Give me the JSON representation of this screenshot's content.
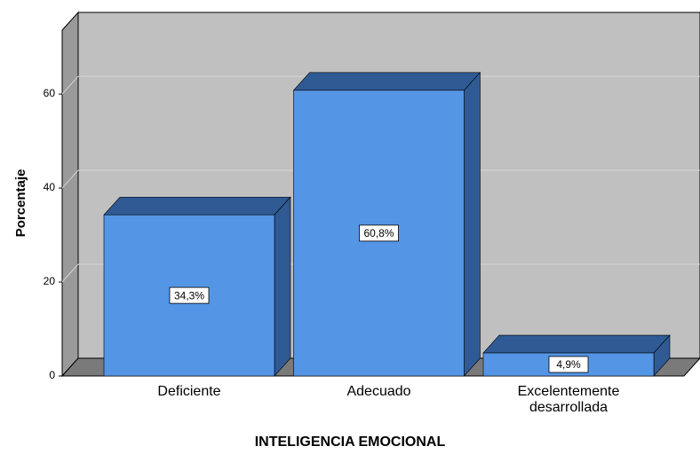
{
  "chart_data": {
    "type": "bar3d",
    "x_label": "INTELIGENCIA EMOCIONAL",
    "y_label": "Porcentaje",
    "categories": [
      "Deficiente",
      "Adecuado",
      "Excelentemente desarrollada"
    ],
    "values": [
      34.3,
      60.8,
      4.9
    ],
    "value_labels": [
      "34,3%",
      "60,8%",
      "4,9%"
    ],
    "color": "#5595e5",
    "edge_color": "#2f5a94",
    "ylim": [
      0,
      73.6
    ],
    "yticks": [
      0,
      20,
      40,
      60
    ],
    "grid": true
  }
}
